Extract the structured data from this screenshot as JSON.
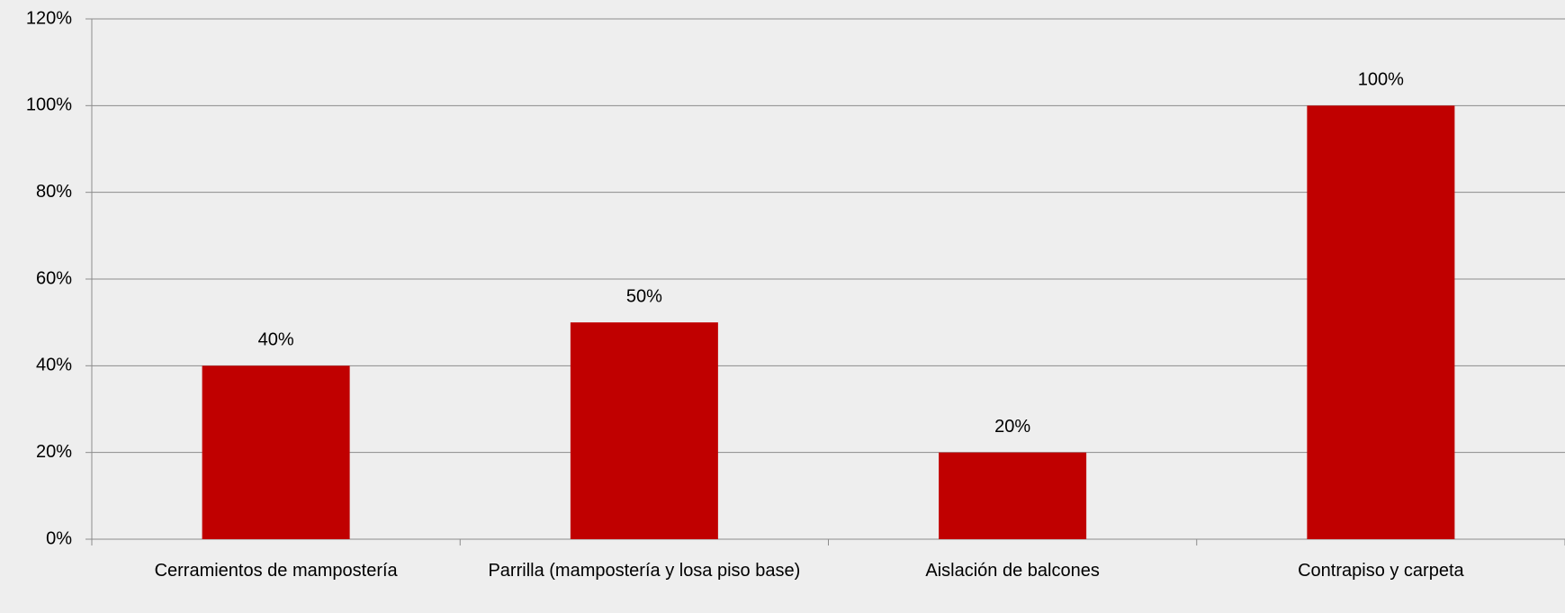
{
  "chart_data": {
    "type": "bar",
    "categories": [
      "Cerramientos de mampostería",
      "Parrilla (mampostería y losa piso base)",
      "Aislación de balcones",
      "Contrapiso y carpeta"
    ],
    "values": [
      40,
      50,
      20,
      100
    ],
    "value_labels": [
      "40%",
      "50%",
      "20%",
      "100%"
    ],
    "color": "#c00000",
    "ylim": [
      0,
      120
    ],
    "yticks": [
      {
        "value": 0,
        "label": "0%"
      },
      {
        "value": 20,
        "label": "20%"
      },
      {
        "value": 40,
        "label": "40%"
      },
      {
        "value": 60,
        "label": "60%"
      },
      {
        "value": 80,
        "label": "80%"
      },
      {
        "value": 100,
        "label": "100%"
      },
      {
        "value": 120,
        "label": "120%"
      }
    ],
    "grid": true
  }
}
